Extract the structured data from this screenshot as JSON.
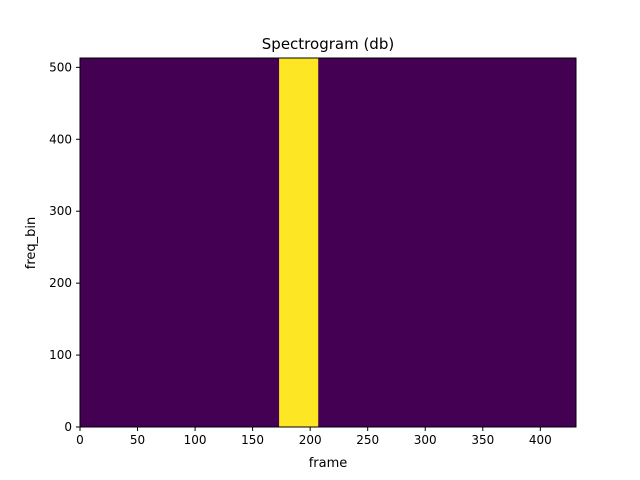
{
  "chart_data": {
    "type": "heatmap",
    "title": "Spectrogram (db)",
    "xlabel": "frame",
    "ylabel": "freq_bin",
    "xlim": [
      0,
      431
    ],
    "ylim": [
      0,
      513
    ],
    "xticks": [
      0,
      50,
      100,
      150,
      200,
      250,
      300,
      350,
      400
    ],
    "yticks": [
      0,
      100,
      200,
      300,
      400,
      500
    ],
    "grid": false,
    "colormap": "viridis",
    "background_color": "#440154",
    "bands": [
      {
        "x_start": 173,
        "x_end": 207,
        "y_start": 0,
        "y_end": 513,
        "color": "#fde725"
      }
    ]
  }
}
